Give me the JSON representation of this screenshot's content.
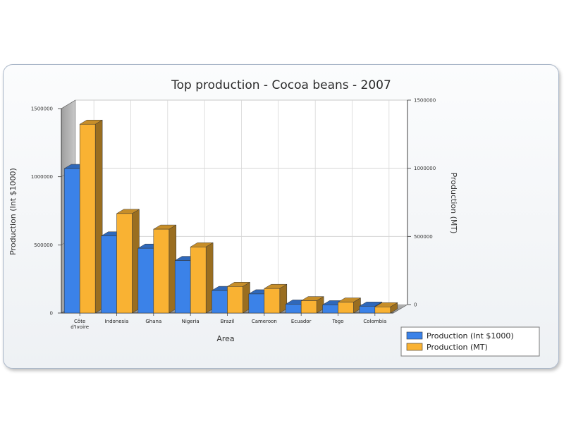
{
  "chart_data": {
    "type": "bar",
    "title": "Top production - Cocoa beans - 2007",
    "xlabel": "Area",
    "ylabel_left": "Production (Int $1000)",
    "ylabel_right": "Production (MT)",
    "categories": [
      "Côte d'Ivoire",
      "Indonesia",
      "Ghana",
      "Nigeria",
      "Brazil",
      "Cameroon",
      "Ecuador",
      "Togo",
      "Colombia"
    ],
    "series": [
      {
        "name": "Production (Int $1000)",
        "axis": "left",
        "color": "#3b82e8",
        "values": [
          1060000,
          565000,
          475000,
          385000,
          165000,
          140000,
          65000,
          60000,
          50000
        ]
      },
      {
        "name": "Production (MT)",
        "axis": "right",
        "color": "#f9b233",
        "values": [
          1385000,
          730000,
          615000,
          485000,
          195000,
          180000,
          90000,
          80000,
          45000
        ]
      }
    ],
    "ylim_left": [
      0,
      1500000
    ],
    "ylim_right": [
      0,
      1500000
    ],
    "yticks_left": [
      "0",
      "500000",
      "1000000",
      "1500000"
    ],
    "yticks_right": [
      "0",
      "500000",
      "1000000",
      "1500000"
    ],
    "grid": true,
    "legend": "bottom-right"
  }
}
